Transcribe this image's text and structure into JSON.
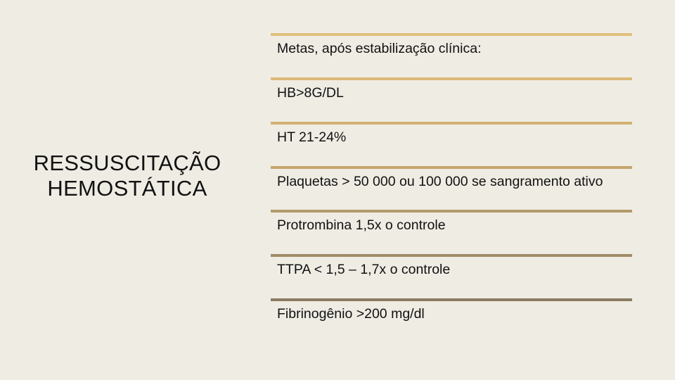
{
  "title": "RESSUSCITAÇÃO HEMOSTÁTICA",
  "items": [
    {
      "text": "Metas, após estabilização clínica:",
      "color": "#e2c07c"
    },
    {
      "text": "HB>8G/DL",
      "color": "#dcb976"
    },
    {
      "text": "HT 21-24%",
      "color": "#d2b172"
    },
    {
      "text": "Plaquetas > 50 000 ou  100 000 se sangramento ativo",
      "color": "#c4a56c"
    },
    {
      "text": "Protrombina 1,5x o controle",
      "color": "#b49a6a"
    },
    {
      "text": "TTPA < 1,5 – 1,7x o controle",
      "color": "#a08c68"
    },
    {
      "text": "Fibrinogênio >200 mg/dl",
      "color": "#8c7c62"
    }
  ]
}
